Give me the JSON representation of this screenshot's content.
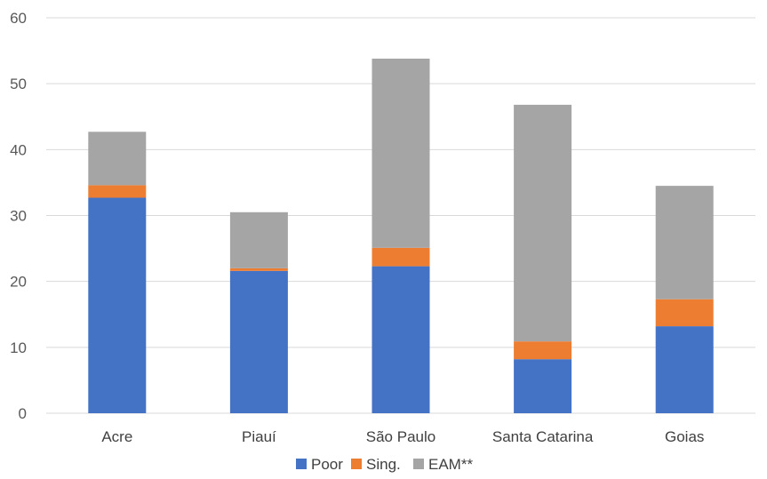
{
  "chart_data": {
    "type": "bar",
    "stacked": true,
    "categories": [
      "Acre",
      "Piauí",
      "São Paulo",
      "Santa Catarina",
      "Goias"
    ],
    "series": [
      {
        "name": "Poor",
        "color": "#4472C4",
        "values": [
          32.7,
          21.6,
          22.3,
          8.2,
          13.2
        ]
      },
      {
        "name": "Sing.",
        "color": "#ED7D31",
        "values": [
          1.9,
          0.4,
          2.8,
          2.7,
          4.1
        ]
      },
      {
        "name": "EAM**",
        "color": "#A5A5A5",
        "values": [
          8.1,
          8.5,
          28.7,
          35.9,
          17.2
        ]
      }
    ],
    "ylim": [
      0,
      60
    ],
    "yticks": [
      0,
      10,
      20,
      30,
      40,
      50,
      60
    ],
    "grid": true,
    "legend": "bottom-center"
  }
}
